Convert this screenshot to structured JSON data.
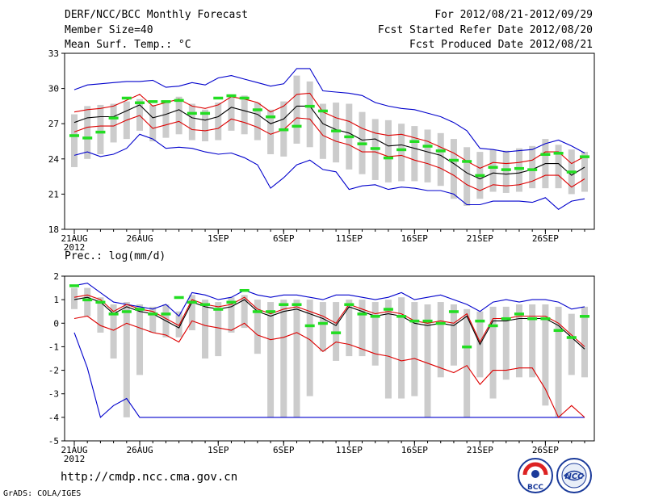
{
  "header": {
    "title": "DERF/NCC/BCC Monthly Forecast",
    "member_size": "Member Size=40",
    "variable": "Mean Surf. Temp.: °C",
    "period": "For 2012/08/21-2012/09/29",
    "started": "Fcst Started Refer Date 2012/08/20",
    "produced": "Fcst Produced Date 2012/08/21"
  },
  "footer": {
    "url": "http://cmdp.ncc.cma.gov.cn",
    "grads": "GrADS: COLA/IGES",
    "logo1": "BCC",
    "logo2": "NCC"
  },
  "colors": {
    "envelope": "#0000cc",
    "spread": "#dd0000",
    "mean": "#000000",
    "obs": "#22dd22",
    "bar": "#cccccc"
  },
  "chart_data": [
    {
      "type": "line",
      "title": "Mean Surf. Temp.: °C",
      "ylim": [
        18,
        33
      ],
      "yticks": [
        18,
        21,
        24,
        27,
        30,
        33
      ],
      "xticks": [
        {
          "i": 0,
          "label": "21AUG",
          "sub": "2012"
        },
        {
          "i": 5,
          "label": "26AUG"
        },
        {
          "i": 11,
          "label": "1SEP"
        },
        {
          "i": 16,
          "label": "6SEP"
        },
        {
          "i": 21,
          "label": "11SEP"
        },
        {
          "i": 26,
          "label": "16SEP"
        },
        {
          "i": 31,
          "label": "21SEP"
        },
        {
          "i": 36,
          "label": "26SEP"
        }
      ],
      "days": 40,
      "max": [
        29.9,
        30.3,
        30.4,
        30.5,
        30.6,
        30.6,
        30.7,
        30.1,
        30.2,
        30.5,
        30.3,
        30.9,
        31.1,
        30.8,
        30.5,
        30.2,
        30.4,
        31.7,
        31.7,
        29.8,
        29.7,
        29.6,
        29.4,
        28.8,
        28.5,
        28.3,
        28.2,
        27.9,
        27.6,
        27.1,
        26.4,
        24.9,
        24.8,
        24.6,
        24.7,
        24.8,
        25.3,
        25.6,
        25.1,
        24.5
      ],
      "upper": [
        28.0,
        28.2,
        28.3,
        28.5,
        29.0,
        29.5,
        28.5,
        28.8,
        29.1,
        28.5,
        28.3,
        28.6,
        29.3,
        29.1,
        28.8,
        28.0,
        28.5,
        29.5,
        29.6,
        28.0,
        27.5,
        27.2,
        26.6,
        26.2,
        26.0,
        26.1,
        25.8,
        25.5,
        25.0,
        24.5,
        23.8,
        23.2,
        23.7,
        23.6,
        23.7,
        23.9,
        24.6,
        24.6,
        23.6,
        24.2
      ],
      "mean": [
        27.1,
        27.5,
        27.6,
        27.6,
        28.1,
        28.6,
        27.5,
        27.8,
        28.2,
        27.5,
        27.3,
        27.6,
        28.4,
        28.1,
        27.8,
        27.0,
        27.4,
        28.5,
        28.5,
        27.0,
        26.5,
        26.2,
        25.6,
        25.7,
        25.1,
        25.2,
        24.9,
        24.6,
        24.3,
        23.6,
        22.8,
        22.3,
        22.8,
        22.7,
        22.8,
        23.1,
        23.6,
        23.6,
        22.6,
        23.3
      ],
      "lower": [
        26.3,
        26.7,
        26.8,
        26.8,
        27.3,
        27.7,
        26.6,
        26.9,
        27.2,
        26.5,
        26.4,
        26.6,
        27.4,
        27.1,
        26.7,
        26.1,
        26.5,
        27.5,
        27.4,
        26.0,
        25.5,
        25.2,
        24.6,
        24.6,
        24.2,
        24.3,
        23.9,
        23.6,
        23.2,
        22.6,
        21.8,
        21.3,
        21.8,
        21.7,
        21.8,
        22.1,
        22.6,
        22.6,
        21.6,
        22.3
      ],
      "min": [
        24.3,
        24.6,
        24.2,
        24.4,
        24.9,
        26.1,
        25.7,
        24.9,
        25.0,
        24.9,
        24.6,
        24.4,
        24.5,
        24.1,
        23.5,
        21.5,
        22.4,
        23.5,
        23.9,
        23.1,
        22.9,
        21.4,
        21.7,
        21.8,
        21.4,
        21.6,
        21.5,
        21.3,
        21.3,
        21.0,
        20.1,
        20.1,
        20.4,
        20.4,
        20.4,
        20.3,
        20.7,
        19.7,
        20.4,
        20.6
      ],
      "bar_top": [
        27.8,
        28.5,
        28.6,
        28.7,
        28.9,
        29.1,
        28.6,
        28.9,
        29.3,
        28.7,
        28.2,
        28.8,
        29.5,
        29.4,
        28.8,
        28.2,
        28.9,
        31.1,
        30.6,
        28.7,
        28.8,
        28.7,
        28.0,
        27.4,
        27.3,
        27.0,
        26.8,
        26.5,
        26.2,
        25.7,
        25.0,
        24.6,
        24.8,
        24.7,
        24.9,
        25.1,
        25.7,
        25.2,
        24.8,
        24.6
      ],
      "bar_bot": [
        23.3,
        24.0,
        24.4,
        25.4,
        25.7,
        26.4,
        25.5,
        25.8,
        26.1,
        25.6,
        25.5,
        25.6,
        26.4,
        26.1,
        25.6,
        24.4,
        24.2,
        25.3,
        25.0,
        24.0,
        23.7,
        23.1,
        22.7,
        22.2,
        22.0,
        22.1,
        22.1,
        22.0,
        21.7,
        20.6,
        20.0,
        20.6,
        21.2,
        21.1,
        21.2,
        21.5,
        21.5,
        21.5,
        21.0,
        21.2
      ],
      "obs": [
        26.0,
        25.8,
        26.3,
        27.5,
        29.2,
        28.8,
        28.9,
        28.9,
        29.0,
        27.9,
        27.9,
        29.2,
        29.4,
        29.2,
        28.2,
        27.6,
        26.5,
        26.8,
        28.5,
        28.1,
        26.4,
        25.9,
        25.3,
        24.9,
        24.1,
        24.8,
        25.5,
        25.1,
        24.7,
        23.9,
        23.8,
        22.6,
        23.3,
        23.1,
        23.2,
        23.1,
        24.4,
        24.5,
        22.9,
        24.2
      ]
    },
    {
      "type": "line",
      "title": "Prec.: log(mm/d)",
      "ylim": [
        -5,
        2
      ],
      "yticks": [
        -5,
        -4,
        -3,
        -2,
        -1,
        0,
        1,
        2
      ],
      "xticks": [
        {
          "i": 0,
          "label": "21AUG",
          "sub": "2012"
        },
        {
          "i": 5,
          "label": "26AUG"
        },
        {
          "i": 11,
          "label": "1SEP"
        },
        {
          "i": 16,
          "label": "6SEP"
        },
        {
          "i": 21,
          "label": "11SEP"
        },
        {
          "i": 26,
          "label": "16SEP"
        },
        {
          "i": 31,
          "label": "21SEP"
        },
        {
          "i": 36,
          "label": "26SEP"
        }
      ],
      "days": 40,
      "max": [
        1.6,
        1.7,
        1.3,
        0.9,
        0.8,
        0.7,
        0.6,
        0.8,
        0.3,
        1.3,
        1.2,
        1.0,
        1.1,
        1.4,
        1.2,
        1.1,
        1.2,
        1.2,
        1.1,
        1.0,
        1.2,
        1.2,
        1.1,
        1.0,
        1.1,
        1.3,
        1.0,
        1.1,
        1.2,
        1.0,
        0.8,
        0.5,
        0.9,
        1.0,
        0.9,
        1.0,
        1.0,
        0.9,
        0.6,
        0.7
      ],
      "upper": [
        1.1,
        1.2,
        1.0,
        0.5,
        0.8,
        0.6,
        0.5,
        0.2,
        -0.1,
        1.0,
        0.8,
        0.7,
        0.8,
        1.1,
        0.6,
        0.4,
        0.6,
        0.7,
        0.5,
        0.3,
        0.0,
        0.8,
        0.6,
        0.4,
        0.5,
        0.4,
        0.1,
        0.0,
        0.1,
        0.0,
        0.4,
        -0.8,
        0.2,
        0.2,
        0.3,
        0.3,
        0.3,
        0.0,
        -0.5,
        -1.0
      ],
      "mean": [
        1.0,
        1.1,
        0.9,
        0.4,
        0.7,
        0.5,
        0.4,
        0.1,
        -0.2,
        0.9,
        0.7,
        0.6,
        0.7,
        1.0,
        0.5,
        0.3,
        0.5,
        0.6,
        0.4,
        0.2,
        -0.1,
        0.7,
        0.5,
        0.3,
        0.4,
        0.3,
        0.0,
        -0.1,
        0.0,
        -0.1,
        0.3,
        -0.9,
        0.1,
        0.1,
        0.2,
        0.2,
        0.2,
        -0.1,
        -0.6,
        -1.1
      ],
      "lower": [
        0.2,
        0.3,
        -0.1,
        -0.3,
        0.0,
        -0.2,
        -0.4,
        -0.5,
        -0.8,
        0.1,
        -0.1,
        -0.2,
        -0.3,
        0.0,
        -0.5,
        -0.7,
        -0.6,
        -0.4,
        -0.7,
        -1.2,
        -0.8,
        -0.9,
        -1.1,
        -1.3,
        -1.4,
        -1.6,
        -1.5,
        -1.7,
        -1.9,
        -2.1,
        -1.8,
        -2.6,
        -2.0,
        -2.0,
        -1.9,
        -1.9,
        -2.8,
        -4.0,
        -3.5,
        -4.0
      ],
      "min": [
        -0.4,
        -1.9,
        -4.0,
        -3.5,
        -3.2,
        -4.0,
        -4.0,
        -4.0,
        -4.0,
        -4.0,
        -4.0,
        -4.0,
        -4.0,
        -4.0,
        -4.0,
        -4.0,
        -4.0,
        -4.0,
        -4.0,
        -4.0,
        -4.0,
        -4.0,
        -4.0,
        -4.0,
        -4.0,
        -4.0,
        -4.0,
        -4.0,
        -4.0,
        -4.0,
        -4.0,
        -4.0,
        -4.0,
        -4.0,
        -4.0,
        -4.0,
        -4.0,
        -4.0,
        -4.0,
        -4.0
      ],
      "bar_top": [
        1.5,
        1.5,
        1.1,
        0.8,
        0.9,
        0.8,
        0.7,
        0.8,
        0.5,
        1.2,
        1.0,
        0.9,
        1.1,
        1.2,
        1.0,
        0.9,
        1.0,
        1.0,
        1.0,
        0.9,
        0.9,
        1.0,
        1.0,
        0.9,
        1.0,
        1.1,
        0.9,
        0.8,
        0.9,
        0.8,
        0.6,
        0.5,
        0.7,
        0.7,
        0.8,
        0.8,
        0.8,
        0.7,
        0.4,
        0.7
      ],
      "bar_bot": [
        0.6,
        0.3,
        -0.4,
        -1.5,
        -4.0,
        -2.2,
        -0.4,
        -0.6,
        -0.6,
        -0.3,
        -1.5,
        -1.4,
        -0.4,
        -0.2,
        -1.3,
        -4.0,
        -4.0,
        -4.0,
        -3.1,
        -1.2,
        -1.6,
        -1.4,
        -1.4,
        -1.8,
        -3.2,
        -3.2,
        -3.1,
        -4.0,
        -2.3,
        -1.8,
        -4.0,
        -2.3,
        -3.2,
        -2.4,
        -2.3,
        -2.3,
        -3.5,
        -4.0,
        -2.2,
        -2.3
      ],
      "obs": [
        1.6,
        1.0,
        0.9,
        0.4,
        0.5,
        0.6,
        0.4,
        0.4,
        1.1,
        0.9,
        0.8,
        0.6,
        0.9,
        1.4,
        0.5,
        0.5,
        0.8,
        0.8,
        -0.1,
        0.0,
        -0.4,
        0.8,
        0.4,
        0.3,
        0.6,
        0.3,
        0.1,
        0.1,
        0.0,
        0.5,
        -1.0,
        0.1,
        -0.1,
        0.2,
        0.4,
        0.2,
        0.2,
        -0.3,
        -0.6,
        0.3
      ]
    }
  ]
}
